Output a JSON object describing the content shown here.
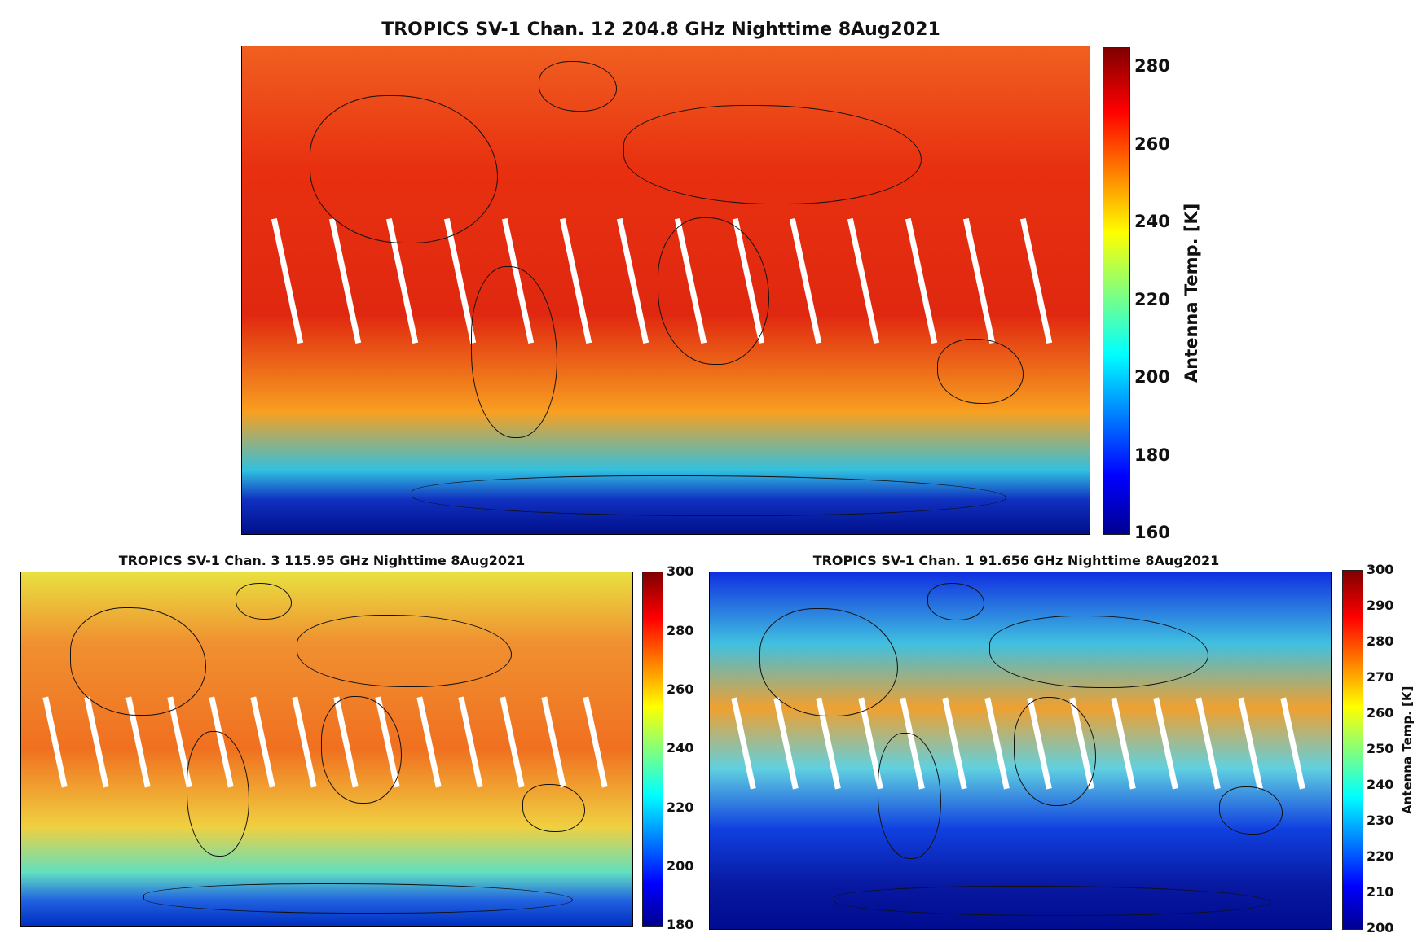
{
  "panels": [
    {
      "title": "TROPICS SV-1 Chan. 12 204.8 GHz Nighttime 8Aug2021",
      "colorbar_label": "Antenna Temp. [K]",
      "ticks": [
        "280",
        "260",
        "240",
        "220",
        "200",
        "180",
        "160"
      ],
      "range": [
        160,
        285
      ],
      "colors": {
        "main": "#f04010",
        "south": "#1030d0",
        "mid": "#ff8020"
      }
    },
    {
      "title": "TROPICS SV-1 Chan. 3 115.95 GHz Nighttime 8Aug2021",
      "colorbar_label": "",
      "ticks": [
        "300",
        "280",
        "260",
        "240",
        "220",
        "200",
        "180"
      ],
      "range": [
        180,
        300
      ],
      "colors": {
        "main": "#f0a030",
        "south": "#2060e0",
        "mid": "#e8e840"
      }
    },
    {
      "title": "TROPICS SV-1 Chan. 1 91.656 GHz Nighttime 8Aug2021",
      "colorbar_label": "Antenna Temp. [K]",
      "ticks": [
        "300",
        "290",
        "280",
        "270",
        "260",
        "250",
        "240",
        "230",
        "220",
        "210",
        "200"
      ],
      "range": [
        200,
        300
      ],
      "colors": {
        "main": "#2040e0",
        "south": "#0818a0",
        "mid": "#30c0e0"
      }
    }
  ]
}
